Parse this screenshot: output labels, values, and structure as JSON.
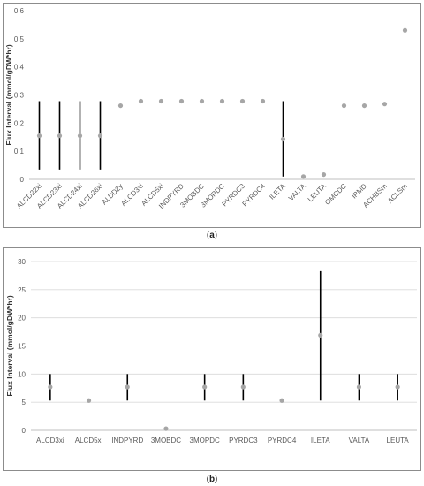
{
  "chart_data": [
    {
      "type": "scatter",
      "panel_label": "a",
      "ylabel": "Flux Interval (mmol/gDW*hr)",
      "ylim": [
        0,
        0.6
      ],
      "yticks": [
        0,
        0.1,
        0.2,
        0.3,
        0.4,
        0.5,
        0.6
      ],
      "categories": [
        "ALCD22xi",
        "ALCD23xi",
        "ALCD24xi",
        "ALCD26xi",
        "ALDD2y",
        "ALCD3xi",
        "ALCD5xi",
        "INDPYRD",
        "3MOBDC",
        "3MOPDC",
        "PYRDC3",
        "PYRDC4",
        "ILETA",
        "VALTA",
        "LEUTA",
        "OMCDC",
        "IPMD",
        "ACHBSm",
        "ACLSm"
      ],
      "points": [
        0.155,
        0.155,
        0.155,
        0.155,
        0.262,
        0.278,
        0.278,
        0.278,
        0.278,
        0.278,
        0.278,
        0.278,
        0.143,
        0.01,
        0.017,
        0.262,
        0.262,
        0.268,
        0.53
      ],
      "ranges": [
        [
          0.035,
          0.278
        ],
        [
          0.035,
          0.278
        ],
        [
          0.035,
          0.278
        ],
        [
          0.035,
          0.278
        ],
        null,
        null,
        null,
        null,
        null,
        null,
        null,
        null,
        [
          0.01,
          0.278
        ],
        null,
        null,
        null,
        null,
        null,
        null
      ]
    },
    {
      "type": "scatter",
      "panel_label": "b",
      "ylabel": "Flux Interval (mmol/gDW*hr)",
      "ylim": [
        0,
        30
      ],
      "yticks": [
        0,
        5,
        10,
        15,
        20,
        25,
        30
      ],
      "categories": [
        "ALCD3xi",
        "ALCD5xi",
        "INDPYRD",
        "3MOBDC",
        "3MOPDC",
        "PYRDC3",
        "PYRDC4",
        "ILETA",
        "VALTA",
        "LEUTA"
      ],
      "points": [
        7.7,
        5.3,
        7.7,
        0.3,
        7.7,
        7.7,
        5.3,
        16.9,
        7.7,
        7.7
      ],
      "ranges": [
        [
          5.3,
          10
        ],
        null,
        [
          5.3,
          10
        ],
        null,
        [
          5.3,
          10
        ],
        [
          5.3,
          10
        ],
        null,
        [
          5.3,
          28.3
        ],
        [
          5.3,
          10
        ],
        [
          5.3,
          10
        ]
      ]
    }
  ],
  "colors": {
    "range_line": "#000000",
    "point": "#a6a6a6",
    "grid": "#d9d9d9",
    "axis": "#bfbfbf"
  }
}
